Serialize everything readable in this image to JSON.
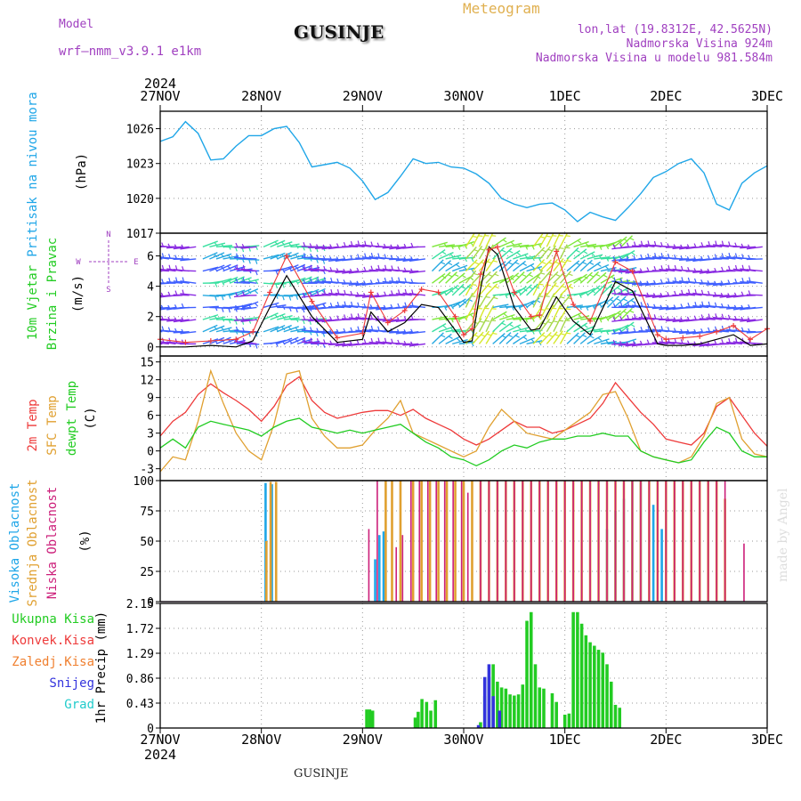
{
  "header": {
    "model_label": "Model",
    "model_value": "wrf—nmm_v3.9.1  e1km",
    "location": "GUSINJE",
    "meteogram_label": "Meteogram",
    "lonlat": "lon,lat (19.8312E, 42.5625N)",
    "elevation": "Nadmorska Visina 924m",
    "model_elevation": "Nadmorska Visina u modelu 981.584m",
    "credit": "made by Angel",
    "footer_location": "GUSINJE"
  },
  "colors": {
    "pressure": "#1fa6e8",
    "temp2m": "#ee3a3a",
    "sfc_temp": "#e0a030",
    "dewpt": "#22cc22",
    "cloud_high": "#1fa6e8",
    "cloud_mid": "#e0a030",
    "cloud_low": "#cc1f7a",
    "precip_total": "#22cc22",
    "precip_conv": "#ee3a3a",
    "precip_frz": "#f08030",
    "precip_snow": "#3333dd",
    "precip_hail": "#22cccc",
    "wind_speed": "#000000",
    "wind_gust": "#ee3a3a"
  },
  "chart_data": [
    {
      "type": "line",
      "panel": "pressure",
      "time_axis": {
        "ticks": [
          "27NOV",
          "28NOV",
          "29NOV",
          "30NOV",
          "1DEC",
          "2DEC",
          "3DEC"
        ],
        "year_label": "2024",
        "range_hours": [
          0,
          144
        ]
      },
      "ylabel_left": "Pritisak na nivou mora",
      "ylabel_unit": "(hPa)",
      "yticks": [
        "1026",
        "1023",
        "1020",
        "1017"
      ],
      "ylim": [
        1017,
        1027.5
      ],
      "series": [
        {
          "x": [
            0,
            3,
            6,
            9,
            12,
            15,
            18,
            21,
            24,
            27,
            30,
            33,
            36,
            39,
            42,
            45,
            48,
            51,
            54,
            57,
            60,
            63,
            66,
            69,
            72,
            75,
            78,
            81,
            84,
            87,
            90,
            93,
            96,
            99,
            102,
            105,
            108,
            111,
            114,
            117,
            120,
            123,
            126,
            129,
            132,
            135,
            138,
            141,
            144
          ],
          "values": [
            1024.9,
            1025.3,
            1026.6,
            1025.6,
            1023.3,
            1023.4,
            1024.5,
            1025.4,
            1025.4,
            1026.0,
            1026.2,
            1024.8,
            1022.7,
            1022.9,
            1023.1,
            1022.6,
            1021.5,
            1019.9,
            1020.5,
            1021.9,
            1023.4,
            1023.0,
            1023.1,
            1022.7,
            1022.6,
            1022.1,
            1021.3,
            1020.0,
            1019.5,
            1019.2,
            1019.5,
            1019.6,
            1019.0,
            1018.0,
            1018.8,
            1018.4,
            1018.1,
            1019.2,
            1020.4,
            1021.8,
            1022.3,
            1023.0,
            1023.4,
            1022.2,
            1019.5,
            1019.0,
            1021.3,
            1022.2,
            1022.8
          ]
        }
      ]
    },
    {
      "type": "line",
      "panel": "wind",
      "ylabel_left": "10m Vjetar",
      "ylabel_left2": "Brzina i Pravac",
      "ylabel_unit": "(m/s)",
      "compass": [
        "N",
        "W",
        "E",
        "S"
      ],
      "yticks": [
        "0",
        "2",
        "4",
        "6"
      ],
      "ylim": [
        -0.6,
        7.5
      ],
      "series": [
        {
          "name": "speed",
          "x": [
            0,
            6,
            12,
            18,
            22,
            26,
            30,
            36,
            42,
            48,
            50,
            54,
            58,
            62,
            66,
            70,
            72,
            74,
            76,
            78,
            80,
            84,
            88,
            90,
            94,
            98,
            102,
            108,
            112,
            118,
            120,
            124,
            128,
            132,
            136,
            140,
            144
          ],
          "values": [
            0.0,
            0.0,
            0.1,
            0.0,
            0.4,
            2.6,
            4.7,
            2.0,
            0.3,
            0.5,
            2.3,
            1.0,
            1.6,
            2.8,
            2.6,
            1.1,
            0.3,
            0.4,
            3.8,
            6.6,
            6.1,
            2.6,
            1.1,
            1.2,
            3.3,
            1.7,
            0.8,
            4.3,
            3.7,
            0.2,
            0.1,
            0.1,
            0.2,
            0.5,
            0.8,
            0.1,
            0.2
          ]
        },
        {
          "name": "gust",
          "x": [
            0,
            6,
            12,
            18,
            22,
            26,
            30,
            36,
            42,
            48,
            50,
            54,
            58,
            62,
            66,
            70,
            72,
            74,
            76,
            78,
            80,
            84,
            88,
            90,
            94,
            98,
            102,
            108,
            112,
            118,
            120,
            124,
            128,
            132,
            136,
            140,
            144
          ],
          "values": [
            0.5,
            0.3,
            0.4,
            0.5,
            1.0,
            3.6,
            6.0,
            3.0,
            0.6,
            0.9,
            3.6,
            1.6,
            2.4,
            3.8,
            3.6,
            2.0,
            0.8,
            1.2,
            4.8,
            6.4,
            6.6,
            3.6,
            2.0,
            2.1,
            6.3,
            2.8,
            1.7,
            5.6,
            5.0,
            0.8,
            0.5,
            0.6,
            0.7,
            1.0,
            1.4,
            0.5,
            1.2
          ]
        }
      ],
      "barbs": {
        "rows": [
          0.2,
          1.0,
          1.8,
          2.6,
          3.4,
          4.2,
          5.0,
          5.8,
          6.6
        ],
        "x_step_hours": 1.6
      }
    },
    {
      "type": "line",
      "panel": "temperature",
      "ylabel_left": "2m Temp",
      "ylabel_left2": "SFC Temp",
      "ylabel_left3": "dewpt Temp",
      "ylabel_unit": "(C)",
      "yticks": [
        "-3",
        "0",
        "3",
        "6",
        "9",
        "12",
        "15"
      ],
      "ylim": [
        -5,
        16
      ],
      "series": [
        {
          "name": "2m Temp",
          "x": [
            0,
            3,
            6,
            9,
            12,
            15,
            18,
            21,
            24,
            27,
            30,
            33,
            36,
            39,
            42,
            45,
            48,
            51,
            54,
            57,
            60,
            63,
            66,
            69,
            72,
            75,
            78,
            81,
            84,
            87,
            90,
            93,
            96,
            99,
            102,
            105,
            108,
            111,
            114,
            117,
            120,
            123,
            126,
            129,
            132,
            135,
            138,
            141,
            144
          ],
          "values": [
            2.5,
            5.0,
            6.5,
            9.5,
            11.3,
            9.8,
            8.5,
            7.0,
            5.0,
            7.5,
            11.0,
            12.5,
            8.5,
            6.5,
            5.5,
            6.0,
            6.5,
            6.8,
            6.8,
            6.0,
            7.0,
            5.5,
            4.5,
            3.5,
            2.0,
            1.0,
            2.0,
            3.5,
            5.0,
            4.0,
            4.0,
            3.0,
            3.5,
            4.5,
            5.5,
            8.0,
            11.5,
            9.0,
            6.5,
            4.5,
            2.0,
            1.5,
            1.0,
            3.0,
            7.5,
            9.0,
            6.0,
            3.0,
            0.8
          ]
        },
        {
          "name": "SFC Temp",
          "x": [
            0,
            3,
            6,
            9,
            12,
            15,
            18,
            21,
            24,
            27,
            30,
            33,
            36,
            39,
            42,
            45,
            48,
            51,
            54,
            57,
            60,
            63,
            66,
            69,
            72,
            75,
            78,
            81,
            84,
            87,
            90,
            93,
            96,
            99,
            102,
            105,
            108,
            111,
            114,
            117,
            120,
            123,
            126,
            129,
            132,
            135,
            138,
            141,
            144
          ],
          "values": [
            -3.5,
            -1.0,
            -1.5,
            5.0,
            13.5,
            8.0,
            3.0,
            0.0,
            -1.5,
            4.5,
            13.0,
            13.5,
            5.5,
            2.5,
            0.5,
            0.5,
            1.0,
            3.5,
            5.5,
            8.5,
            3.0,
            2.0,
            1.0,
            0.0,
            -1.0,
            0.0,
            4.0,
            7.0,
            5.0,
            3.0,
            2.5,
            2.0,
            3.5,
            5.0,
            6.5,
            9.5,
            10.0,
            5.5,
            0.0,
            -1.0,
            -1.5,
            -2.0,
            -1.0,
            2.5,
            8.0,
            9.0,
            2.0,
            -0.5,
            -1.0
          ]
        },
        {
          "name": "dewpt Temp",
          "x": [
            0,
            3,
            6,
            9,
            12,
            15,
            18,
            21,
            24,
            27,
            30,
            33,
            36,
            39,
            42,
            45,
            48,
            51,
            54,
            57,
            60,
            63,
            66,
            69,
            72,
            75,
            78,
            81,
            84,
            87,
            90,
            93,
            96,
            99,
            102,
            105,
            108,
            111,
            114,
            117,
            120,
            123,
            126,
            129,
            132,
            135,
            138,
            141,
            144
          ],
          "values": [
            0.5,
            2.0,
            0.5,
            4.0,
            5.0,
            4.5,
            4.0,
            3.5,
            2.5,
            4.0,
            5.0,
            5.5,
            4.0,
            3.5,
            3.0,
            3.5,
            3.0,
            3.5,
            4.0,
            4.5,
            3.0,
            1.5,
            0.5,
            -1.0,
            -1.5,
            -2.5,
            -1.5,
            0.0,
            1.0,
            0.5,
            1.5,
            2.0,
            2.0,
            2.5,
            2.5,
            3.0,
            2.5,
            2.5,
            0.0,
            -1.0,
            -1.5,
            -2.0,
            -1.5,
            1.5,
            4.0,
            3.0,
            0.0,
            -1.0,
            -1.0
          ]
        }
      ]
    },
    {
      "type": "bar",
      "panel": "clouds",
      "ylabel_left": "Visoka Oblacnost",
      "ylabel_left2": "Srednja Oblacnost",
      "ylabel_left3": "Niska Oblacnost",
      "ylabel_unit": "(%)",
      "yticks": [
        "0",
        "25",
        "50",
        "75",
        "100"
      ],
      "ylim": [
        0,
        100
      ],
      "series": [
        {
          "name": "high",
          "x": [
            25,
            26.5,
            51,
            52,
            53,
            106,
            108,
            110,
            112,
            114,
            117,
            119
          ],
          "values": [
            98,
            97,
            35,
            55,
            58,
            60,
            75,
            85,
            100,
            100,
            80,
            60
          ]
        },
        {
          "name": "mid",
          "x": [
            25.2,
            26.2,
            27.5,
            53.5,
            55,
            57,
            60,
            62,
            64,
            66,
            68,
            70,
            72,
            74,
            76,
            78,
            80,
            82,
            84,
            86,
            88,
            90,
            92,
            94,
            96,
            98,
            100,
            102,
            104,
            106,
            108,
            110,
            112,
            114,
            116,
            118,
            120,
            122,
            124,
            126,
            128,
            130,
            132,
            134
          ],
          "values": [
            50,
            99,
            99,
            100,
            100,
            100,
            100,
            100,
            100,
            100,
            100,
            100,
            100,
            100,
            100,
            100,
            100,
            100,
            100,
            100,
            100,
            100,
            100,
            100,
            100,
            100,
            100,
            100,
            100,
            100,
            100,
            100,
            100,
            100,
            100,
            100,
            100,
            100,
            100,
            100,
            100,
            100,
            100,
            85
          ]
        },
        {
          "name": "low",
          "x": [
            49.5,
            51.5,
            56,
            57.5,
            59.5,
            61.5,
            63.5,
            65.5,
            67.5,
            69.5,
            71.5,
            73,
            76,
            78,
            80,
            82,
            84,
            86,
            88,
            90,
            92,
            94,
            96,
            98,
            100,
            102,
            104,
            106,
            108,
            110,
            112,
            114,
            116,
            118,
            120,
            122,
            124,
            126,
            128,
            130,
            132,
            134,
            138.5
          ],
          "values": [
            60,
            100,
            45,
            55,
            100,
            100,
            100,
            100,
            100,
            100,
            100,
            90,
            100,
            100,
            100,
            100,
            100,
            100,
            100,
            100,
            100,
            100,
            100,
            100,
            100,
            100,
            100,
            100,
            100,
            100,
            100,
            100,
            100,
            100,
            100,
            100,
            100,
            100,
            100,
            100,
            100,
            100,
            48
          ]
        }
      ]
    },
    {
      "type": "bar",
      "panel": "precip",
      "legend": [
        "Ukupna Kisa",
        "Konvek.Kisa",
        "Zaledj.Kisa",
        "Snijeg",
        "Grad"
      ],
      "ylabel_unit": "1hr Precip (mm)",
      "yticks": [
        "0",
        "0.43",
        "0.86",
        "1.29",
        "1.72",
        "2.15"
      ],
      "ylim": [
        0,
        2.15
      ],
      "bar_width_hours": 0.75,
      "series": [
        {
          "name": "Ukupna Kisa",
          "x": [
            49,
            49.7,
            50.4,
            60.5,
            61.2,
            62.1,
            63.2,
            64.2,
            65.3,
            76,
            77,
            78,
            79,
            80,
            81,
            82,
            83,
            84,
            85,
            86,
            87,
            88,
            89,
            90,
            91,
            93,
            94,
            96,
            97,
            98,
            99,
            100,
            101,
            102,
            103,
            104,
            105,
            106,
            107,
            108,
            109
          ],
          "values": [
            0.32,
            0.32,
            0.3,
            0.18,
            0.28,
            0.5,
            0.45,
            0.3,
            0.48,
            0.1,
            0.55,
            0.88,
            1.1,
            0.8,
            0.7,
            0.68,
            0.58,
            0.56,
            0.58,
            0.75,
            1.85,
            2.0,
            1.1,
            0.7,
            0.68,
            0.6,
            0.45,
            0.23,
            0.25,
            2.0,
            2.0,
            1.8,
            1.6,
            1.48,
            1.42,
            1.35,
            1.3,
            1.1,
            0.8,
            0.4,
            0.35
          ]
        },
        {
          "name": "Konvek.Kisa",
          "x": [],
          "values": []
        },
        {
          "name": "Zaledj.Kisa",
          "x": [],
          "values": []
        },
        {
          "name": "Snijeg",
          "x": [
            75.5,
            77,
            78,
            79,
            80.5
          ],
          "values": [
            0.05,
            0.88,
            1.1,
            0.55,
            0.3
          ]
        },
        {
          "name": "Grad",
          "x": [],
          "values": []
        }
      ]
    }
  ]
}
